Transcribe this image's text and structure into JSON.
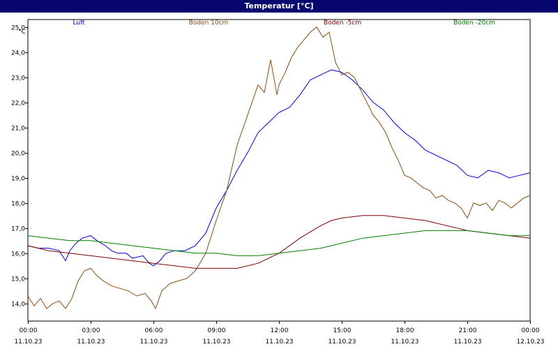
{
  "window": {
    "title": "Temperatur [°C]"
  },
  "colors": {
    "titlebar": "#06066e",
    "luft": "#0000dd",
    "boden10": "#8b4a12",
    "boden5": "#800000",
    "boden20": "#008000"
  },
  "chart_data": {
    "type": "line",
    "title": "Temperatur [°C]",
    "ylabel": "°C",
    "ylim": [
      13.3,
      25.3
    ],
    "yticks": [
      "14,0",
      "15,0",
      "16,0",
      "17,0",
      "18,0",
      "19,0",
      "20,0",
      "21,0",
      "22,0",
      "23,0",
      "24,0",
      "25,0"
    ],
    "yticks_values": [
      14,
      15,
      16,
      17,
      18,
      19,
      20,
      21,
      22,
      23,
      24,
      25
    ],
    "xlim": [
      0,
      24
    ],
    "xticks": [
      {
        "time": "00:00",
        "date": "11.10.23"
      },
      {
        "time": "03:00",
        "date": "11.10.23"
      },
      {
        "time": "06:00",
        "date": "11.10.23"
      },
      {
        "time": "09:00",
        "date": "11.10.23"
      },
      {
        "time": "12:00",
        "date": "11.10.23"
      },
      {
        "time": "15:00",
        "date": "11.10.23"
      },
      {
        "time": "18:00",
        "date": "11.10.23"
      },
      {
        "time": "21:00",
        "date": "11.10.23"
      },
      {
        "time": "00:00",
        "date": "12.10.23"
      }
    ],
    "grid": true,
    "legend_position": "top",
    "series": [
      {
        "name": "Luft",
        "color": "#0000dd",
        "x": [
          0,
          0.5,
          1,
          1.5,
          1.8,
          2,
          2.3,
          2.6,
          3,
          3.3,
          3.7,
          4,
          4.3,
          4.7,
          5,
          5.5,
          5.8,
          6,
          6.3,
          6.6,
          7,
          7.5,
          8,
          8.5,
          9,
          9.5,
          10,
          10.5,
          11,
          11.5,
          12,
          12.5,
          13,
          13.5,
          14,
          14.5,
          15,
          15.5,
          16,
          16.5,
          17,
          17.5,
          18,
          18.5,
          19,
          19.5,
          20,
          20.5,
          21,
          21.5,
          22,
          22.5,
          23,
          23.5,
          24
        ],
        "y": [
          16.3,
          16.2,
          16.2,
          16.1,
          15.7,
          16.1,
          16.4,
          16.6,
          16.7,
          16.5,
          16.3,
          16.1,
          16.0,
          16.0,
          15.8,
          15.9,
          15.6,
          15.5,
          15.7,
          16.0,
          16.1,
          16.1,
          16.3,
          16.8,
          17.8,
          18.5,
          19.3,
          20.0,
          20.8,
          21.2,
          21.6,
          21.8,
          22.3,
          22.9,
          23.1,
          23.3,
          23.2,
          22.9,
          22.5,
          22.0,
          21.7,
          21.2,
          20.8,
          20.5,
          20.1,
          19.9,
          19.7,
          19.5,
          19.1,
          19.0,
          19.3,
          19.2,
          19.0,
          19.1,
          19.2
        ]
      },
      {
        "name": "Boden 10cm",
        "color": "#8b4a12",
        "x": [
          0,
          0.3,
          0.6,
          0.9,
          1.2,
          1.5,
          1.8,
          2.1,
          2.4,
          2.7,
          3,
          3.3,
          3.6,
          4,
          4.4,
          4.8,
          5.2,
          5.6,
          5.9,
          6.1,
          6.4,
          6.8,
          7.2,
          7.6,
          8,
          8.5,
          9,
          9.5,
          10,
          10.5,
          11,
          11.3,
          11.6,
          11.9,
          12,
          12.3,
          12.6,
          12.9,
          13.2,
          13.5,
          13.8,
          14.1,
          14.4,
          14.7,
          15,
          15.3,
          15.6,
          15.9,
          16.2,
          16.5,
          16.8,
          17.1,
          17.4,
          17.7,
          18,
          18.3,
          18.6,
          18.9,
          19.2,
          19.5,
          19.8,
          20.1,
          20.4,
          20.7,
          21,
          21.3,
          21.6,
          21.9,
          22.2,
          22.5,
          22.8,
          23.1,
          23.4,
          23.7,
          24
        ],
        "y": [
          14.3,
          13.9,
          14.2,
          13.8,
          14.0,
          14.1,
          13.8,
          14.2,
          14.9,
          15.3,
          15.4,
          15.1,
          14.9,
          14.7,
          14.6,
          14.5,
          14.3,
          14.4,
          14.1,
          13.8,
          14.5,
          14.8,
          14.9,
          15.0,
          15.3,
          16.0,
          17.3,
          18.5,
          20.3,
          21.5,
          22.7,
          22.4,
          23.7,
          22.3,
          22.7,
          23.2,
          23.8,
          24.2,
          24.5,
          24.8,
          25.0,
          24.6,
          24.8,
          23.6,
          23.1,
          23.2,
          23.0,
          22.5,
          22.0,
          21.5,
          21.2,
          20.8,
          20.2,
          19.7,
          19.1,
          19.0,
          18.8,
          18.6,
          18.5,
          18.2,
          18.3,
          18.1,
          18.0,
          17.8,
          17.4,
          18.0,
          17.9,
          18.0,
          17.7,
          18.1,
          18.0,
          17.8,
          18.0,
          18.2,
          18.3
        ]
      },
      {
        "name": "Boden -5cm",
        "color": "#800000",
        "x": [
          0,
          1,
          2,
          3,
          4,
          5,
          6,
          7,
          8,
          9,
          10,
          11,
          12,
          13,
          14,
          14.5,
          15,
          16,
          17,
          18,
          19,
          20,
          21,
          22,
          23,
          24
        ],
        "y": [
          16.3,
          16.1,
          16.0,
          15.9,
          15.8,
          15.7,
          15.6,
          15.5,
          15.4,
          15.4,
          15.4,
          15.6,
          16.0,
          16.6,
          17.1,
          17.3,
          17.4,
          17.5,
          17.5,
          17.4,
          17.3,
          17.1,
          16.9,
          16.8,
          16.7,
          16.6
        ]
      },
      {
        "name": "Boden -20cm",
        "color": "#008000",
        "x": [
          0,
          1,
          2,
          3,
          4,
          5,
          6,
          7,
          8,
          9,
          10,
          11,
          12,
          13,
          14,
          15,
          16,
          17,
          18,
          19,
          20,
          21,
          22,
          23,
          24
        ],
        "y": [
          16.7,
          16.6,
          16.5,
          16.5,
          16.4,
          16.3,
          16.2,
          16.1,
          16.0,
          16.0,
          15.9,
          15.9,
          16.0,
          16.1,
          16.2,
          16.4,
          16.6,
          16.7,
          16.8,
          16.9,
          16.9,
          16.9,
          16.8,
          16.7,
          16.7
        ]
      }
    ]
  }
}
